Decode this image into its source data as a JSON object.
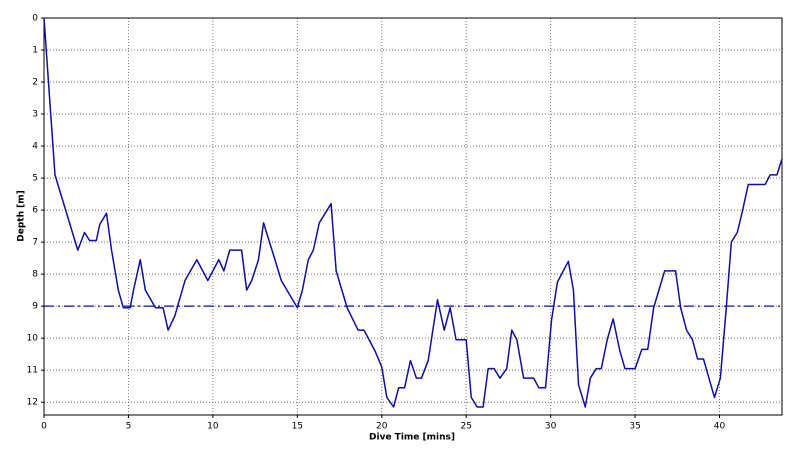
{
  "chart_data": {
    "type": "line",
    "xlabel": "Dive Time [mins]",
    "ylabel": "Depth [m]",
    "x": [
      0,
      0.65,
      2.0,
      2.4,
      2.7,
      3.1,
      3.3,
      3.7,
      4.0,
      4.4,
      4.7,
      5.1,
      5.3,
      5.7,
      6.0,
      6.6,
      7.05,
      7.35,
      7.75,
      8.35,
      9.05,
      9.7,
      10.35,
      10.65,
      11.0,
      11.7,
      12.0,
      12.3,
      12.7,
      13.0,
      13.5,
      14.05,
      15.0,
      15.3,
      15.65,
      15.95,
      16.3,
      17.0,
      17.3,
      17.95,
      18.6,
      18.95,
      19.6,
      20.0,
      20.3,
      20.7,
      21.0,
      21.35,
      21.7,
      22.05,
      22.35,
      22.75,
      23.3,
      23.7,
      24.05,
      24.4,
      25.0,
      25.3,
      25.65,
      26.0,
      26.3,
      26.65,
      27.0,
      27.4,
      27.7,
      28.0,
      28.4,
      29.0,
      29.3,
      29.7,
      30.05,
      30.4,
      31.05,
      31.35,
      31.65,
      32.05,
      32.35,
      32.7,
      33.0,
      33.35,
      33.7,
      34.1,
      34.4,
      35.0,
      35.4,
      35.75,
      36.1,
      36.75,
      37.4,
      37.7,
      38.05,
      38.4,
      38.7,
      39.05,
      39.7,
      40.05,
      40.4,
      40.7,
      41.05,
      41.35,
      41.7,
      42.7,
      43.0,
      43.4,
      43.7
    ],
    "values": [
      0,
      4.9,
      7.25,
      6.7,
      6.95,
      6.95,
      6.45,
      6.1,
      7.25,
      8.5,
      9.05,
      9.05,
      8.5,
      7.55,
      8.5,
      9.05,
      9.05,
      9.75,
      9.3,
      8.2,
      7.55,
      8.2,
      7.55,
      7.9,
      7.25,
      7.25,
      8.5,
      8.2,
      7.55,
      6.4,
      7.25,
      8.2,
      9.05,
      8.5,
      7.55,
      7.25,
      6.4,
      5.8,
      7.9,
      9.05,
      9.75,
      9.75,
      10.4,
      10.9,
      11.85,
      12.15,
      11.55,
      11.55,
      10.7,
      11.25,
      11.25,
      10.7,
      8.8,
      9.75,
      9.05,
      10.05,
      10.05,
      11.85,
      12.15,
      12.15,
      10.95,
      10.95,
      11.25,
      10.95,
      9.75,
      10.05,
      11.25,
      11.25,
      11.55,
      11.55,
      9.45,
      8.25,
      7.6,
      8.5,
      11.45,
      12.15,
      11.25,
      10.95,
      10.95,
      10.05,
      9.4,
      10.4,
      10.95,
      10.95,
      10.35,
      10.35,
      9.05,
      7.9,
      7.9,
      9.05,
      9.75,
      10.05,
      10.65,
      10.65,
      11.85,
      11.25,
      9.05,
      7.0,
      6.7,
      6.05,
      5.2,
      5.2,
      4.9,
      4.9,
      4.4
    ],
    "color": "#10109c",
    "reference_line": 9,
    "xlim": [
      0,
      43.7
    ],
    "xticks": [
      0,
      5,
      10,
      15,
      20,
      25,
      30,
      35,
      40
    ],
    "ylim": [
      0,
      12.4
    ],
    "yticks": [
      0,
      1,
      2,
      3,
      4,
      5,
      6,
      7,
      8,
      9,
      10,
      11,
      12
    ],
    "y_inverted": true,
    "grid": true
  }
}
